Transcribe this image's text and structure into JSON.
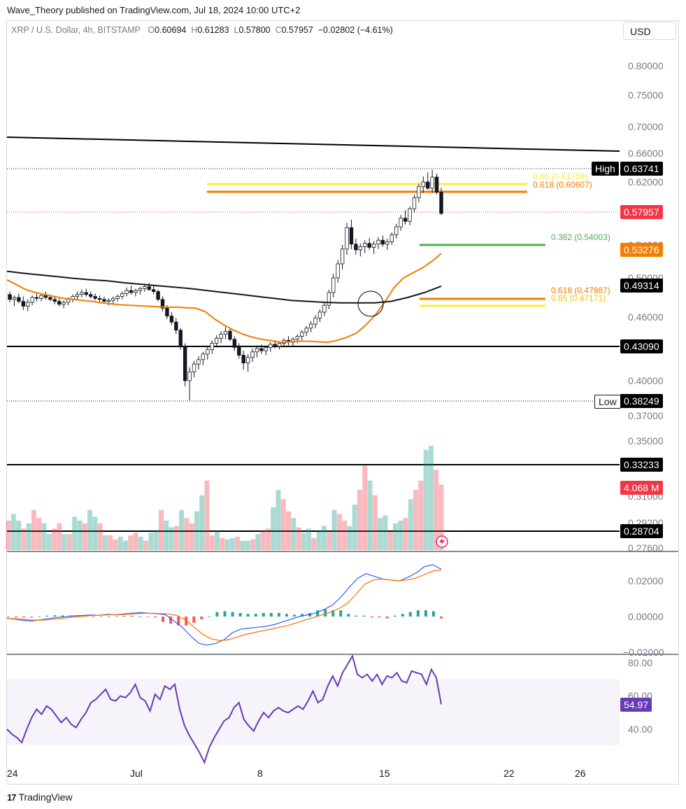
{
  "header": {
    "published_by": "Wave_Theory published on TradingView.com, Jul 18, 2024 10:00 UTC+2"
  },
  "legend": {
    "symbol": "XRP / U.S. Dollar, 4h, BITSTAMP",
    "open_label": "O",
    "open": "0.60694",
    "high_label": "H",
    "high": "0.61283",
    "low_label": "L",
    "low": "0.57800",
    "close_label": "C",
    "close": "0.57957",
    "change": "−0.02802 (−4.61%)"
  },
  "currency_button": "USD",
  "price_axis": [
    "0.80000",
    "0.75000",
    "0.70000",
    "0.66000",
    "0.62000",
    "0.54000",
    "0.50000",
    "0.46000",
    "0.40000",
    "0.37000",
    "0.35000",
    "0.31000",
    "0.29200",
    "0.27600"
  ],
  "price_tags": {
    "high_label": "High",
    "high": "0.63741",
    "current": "0.57957",
    "ema": "0.53276",
    "sma": "0.49314",
    "support": "0.43090",
    "low_label": "Low",
    "low": "0.38249",
    "level_a": "0.33233",
    "volume": "4.068 M",
    "level_b": "0.28704"
  },
  "fib_labels": {
    "upper_65": "0.65 (0.61769)",
    "upper_618": "0.618 (0.60607)",
    "mid_382": "0.382 (0.54003)",
    "lower_618": "0.618 (0.47987)",
    "lower_65": "0.65 (0.47171)"
  },
  "macd_axis": [
    "0.02000",
    "0.00000",
    "−0.02000"
  ],
  "rsi_axis": [
    "80.00",
    "60.00",
    "40.00"
  ],
  "rsi_value": "54.97",
  "date_axis": [
    "24",
    "Jul",
    "8",
    "15",
    "22",
    "26"
  ],
  "brand": "TradingView",
  "colors": {
    "up": "#089981",
    "down": "#f23645",
    "ema": "#f57c00",
    "sma": "#000000",
    "fib_yellow": "#ffeb3b",
    "fib_orange": "#f57c00",
    "fib_green": "#4caf50",
    "macd": "#2962ff",
    "signal": "#ff6d00",
    "rsi": "#7e57c2"
  },
  "chart_data": [
    {
      "type": "candlestick",
      "title": "XRP / U.S. Dollar, 4h, BITSTAMP",
      "x_range": [
        "2024-06-24",
        "2024-07-27"
      ],
      "ylim": [
        0.276,
        0.8
      ],
      "ohlc": [
        [
          0.483,
          0.486,
          0.475,
          0.478
        ],
        [
          0.478,
          0.482,
          0.471,
          0.48
        ],
        [
          0.48,
          0.484,
          0.474,
          0.476
        ],
        [
          0.476,
          0.481,
          0.467,
          0.471
        ],
        [
          0.471,
          0.478,
          0.466,
          0.475
        ],
        [
          0.475,
          0.482,
          0.472,
          0.48
        ],
        [
          0.48,
          0.485,
          0.476,
          0.479
        ],
        [
          0.479,
          0.484,
          0.476,
          0.482
        ],
        [
          0.482,
          0.486,
          0.478,
          0.48
        ],
        [
          0.48,
          0.483,
          0.476,
          0.478
        ],
        [
          0.478,
          0.481,
          0.473,
          0.476
        ],
        [
          0.476,
          0.479,
          0.471,
          0.473
        ],
        [
          0.473,
          0.477,
          0.469,
          0.475
        ],
        [
          0.475,
          0.48,
          0.472,
          0.478
        ],
        [
          0.478,
          0.483,
          0.475,
          0.481
        ],
        [
          0.481,
          0.486,
          0.478,
          0.483
        ],
        [
          0.483,
          0.488,
          0.48,
          0.485
        ],
        [
          0.485,
          0.489,
          0.481,
          0.483
        ],
        [
          0.483,
          0.486,
          0.479,
          0.481
        ],
        [
          0.481,
          0.484,
          0.477,
          0.479
        ],
        [
          0.479,
          0.482,
          0.475,
          0.478
        ],
        [
          0.478,
          0.481,
          0.474,
          0.476
        ],
        [
          0.476,
          0.479,
          0.472,
          0.477
        ],
        [
          0.477,
          0.481,
          0.474,
          0.479
        ],
        [
          0.479,
          0.483,
          0.476,
          0.481
        ],
        [
          0.481,
          0.486,
          0.478,
          0.484
        ],
        [
          0.484,
          0.49,
          0.481,
          0.487
        ],
        [
          0.487,
          0.492,
          0.483,
          0.485
        ],
        [
          0.485,
          0.489,
          0.481,
          0.487
        ],
        [
          0.487,
          0.491,
          0.483,
          0.489
        ],
        [
          0.489,
          0.494,
          0.486,
          0.491
        ],
        [
          0.491,
          0.495,
          0.487,
          0.488
        ],
        [
          0.488,
          0.492,
          0.483,
          0.486
        ],
        [
          0.486,
          0.488,
          0.476,
          0.478
        ],
        [
          0.478,
          0.481,
          0.466,
          0.469
        ],
        [
          0.469,
          0.472,
          0.458,
          0.461
        ],
        [
          0.461,
          0.465,
          0.452,
          0.455
        ],
        [
          0.455,
          0.459,
          0.443,
          0.447
        ],
        [
          0.447,
          0.449,
          0.428,
          0.431
        ],
        [
          0.431,
          0.434,
          0.395,
          0.4
        ],
        [
          0.4,
          0.412,
          0.383,
          0.408
        ],
        [
          0.408,
          0.418,
          0.403,
          0.415
        ],
        [
          0.415,
          0.422,
          0.41,
          0.419
        ],
        [
          0.419,
          0.426,
          0.414,
          0.424
        ],
        [
          0.424,
          0.431,
          0.419,
          0.428
        ],
        [
          0.428,
          0.437,
          0.424,
          0.434
        ],
        [
          0.434,
          0.442,
          0.43,
          0.439
        ],
        [
          0.439,
          0.446,
          0.434,
          0.443
        ],
        [
          0.443,
          0.45,
          0.438,
          0.446
        ],
        [
          0.446,
          0.449,
          0.436,
          0.438
        ],
        [
          0.438,
          0.441,
          0.427,
          0.43
        ],
        [
          0.43,
          0.434,
          0.42,
          0.423
        ],
        [
          0.423,
          0.427,
          0.41,
          0.416
        ],
        [
          0.416,
          0.424,
          0.408,
          0.421
        ],
        [
          0.421,
          0.429,
          0.417,
          0.426
        ],
        [
          0.426,
          0.432,
          0.421,
          0.429
        ],
        [
          0.429,
          0.433,
          0.424,
          0.427
        ],
        [
          0.427,
          0.432,
          0.423,
          0.43
        ],
        [
          0.43,
          0.435,
          0.426,
          0.433
        ],
        [
          0.433,
          0.437,
          0.429,
          0.431
        ],
        [
          0.431,
          0.436,
          0.428,
          0.434
        ],
        [
          0.434,
          0.439,
          0.43,
          0.437
        ],
        [
          0.437,
          0.441,
          0.432,
          0.435
        ],
        [
          0.435,
          0.44,
          0.431,
          0.438
        ],
        [
          0.438,
          0.443,
          0.434,
          0.441
        ],
        [
          0.441,
          0.447,
          0.437,
          0.445
        ],
        [
          0.445,
          0.451,
          0.441,
          0.449
        ],
        [
          0.449,
          0.456,
          0.445,
          0.453
        ],
        [
          0.453,
          0.462,
          0.449,
          0.459
        ],
        [
          0.459,
          0.468,
          0.455,
          0.465
        ],
        [
          0.465,
          0.475,
          0.461,
          0.472
        ],
        [
          0.472,
          0.488,
          0.468,
          0.485
        ],
        [
          0.485,
          0.505,
          0.48,
          0.5
        ],
        [
          0.5,
          0.522,
          0.495,
          0.517
        ],
        [
          0.517,
          0.54,
          0.51,
          0.535
        ],
        [
          0.535,
          0.568,
          0.528,
          0.562
        ],
        [
          0.562,
          0.572,
          0.535,
          0.541
        ],
        [
          0.541,
          0.548,
          0.528,
          0.534
        ],
        [
          0.534,
          0.542,
          0.526,
          0.538
        ],
        [
          0.538,
          0.546,
          0.53,
          0.542
        ],
        [
          0.542,
          0.549,
          0.534,
          0.537
        ],
        [
          0.537,
          0.545,
          0.529,
          0.541
        ],
        [
          0.541,
          0.55,
          0.535,
          0.546
        ],
        [
          0.546,
          0.552,
          0.538,
          0.541
        ],
        [
          0.541,
          0.548,
          0.534,
          0.544
        ],
        [
          0.544,
          0.556,
          0.54,
          0.553
        ],
        [
          0.553,
          0.567,
          0.548,
          0.563
        ],
        [
          0.563,
          0.578,
          0.558,
          0.574
        ],
        [
          0.574,
          0.584,
          0.566,
          0.57
        ],
        [
          0.57,
          0.589,
          0.565,
          0.586
        ],
        [
          0.586,
          0.604,
          0.581,
          0.6
        ],
        [
          0.6,
          0.618,
          0.594,
          0.614
        ],
        [
          0.614,
          0.628,
          0.606,
          0.62
        ],
        [
          0.62,
          0.634,
          0.61,
          0.612
        ],
        [
          0.612,
          0.6374,
          0.606,
          0.627
        ],
        [
          0.627,
          0.632,
          0.604,
          0.607
        ],
        [
          0.607,
          0.6128,
          0.578,
          0.58
        ]
      ]
    },
    {
      "type": "line",
      "title": "EMA",
      "ylim": [
        0.276,
        0.8
      ],
      "values": [
        0.498,
        0.493,
        0.488,
        0.485,
        0.483,
        0.481,
        0.479,
        0.478,
        0.477,
        0.476,
        0.4745,
        0.4735,
        0.4725,
        0.472,
        0.4715,
        0.471,
        0.4705,
        0.47,
        0.47,
        0.4695,
        0.469,
        0.4655,
        0.458,
        0.452,
        0.447,
        0.443,
        0.44,
        0.438,
        0.4365,
        0.435,
        0.4355,
        0.436,
        0.436,
        0.4355,
        0.435,
        0.437,
        0.44,
        0.444,
        0.452,
        0.462,
        0.475,
        0.49,
        0.5,
        0.506,
        0.512,
        0.52,
        0.5295
      ]
    },
    {
      "type": "line",
      "title": "SMA",
      "ylim": [
        0.276,
        0.8
      ],
      "values": [
        0.508,
        0.5055,
        0.5035,
        0.5015,
        0.4995,
        0.498,
        0.497,
        0.495,
        0.4935,
        0.492,
        0.4905,
        0.489,
        0.487,
        0.485,
        0.483,
        0.481,
        0.479,
        0.477,
        0.476,
        0.475,
        0.4745,
        0.4745,
        0.4745,
        0.476,
        0.48,
        0.485,
        0.4915
      ]
    },
    {
      "type": "bar",
      "title": "Volume",
      "values": [
        22,
        27,
        22,
        16,
        20,
        30,
        24,
        20,
        12,
        16,
        20,
        12,
        12,
        25,
        22,
        20,
        30,
        25,
        20,
        11,
        11,
        8,
        10,
        7,
        11,
        13,
        10,
        7,
        13,
        15,
        30,
        22,
        17,
        18,
        30,
        24,
        20,
        29,
        41,
        52,
        11,
        14,
        9,
        8,
        9,
        10,
        7,
        7,
        8,
        12,
        14,
        16,
        32,
        45,
        38,
        29,
        24,
        17,
        13,
        16,
        9,
        14,
        18,
        14,
        30,
        27,
        22,
        18,
        34,
        45,
        63,
        52,
        41,
        24,
        26,
        14,
        20,
        22,
        24,
        38,
        45,
        52,
        75,
        78,
        60,
        49
      ]
    },
    {
      "type": "line",
      "title": "MACD",
      "ylim": [
        -0.02,
        0.03
      ],
      "series": [
        {
          "values": [
            -0.001,
            -0.0015,
            -0.0022,
            -0.0025,
            -0.0018,
            -0.0012,
            -0.0005,
            -0.0001,
            0.0004,
            0.0006,
            0.0009,
            0.0007,
            0.0012,
            0.001,
            0.0015,
            0.0019,
            0.0022,
            0.0018,
            0.0016,
            0.001,
            -0.0025,
            -0.006,
            -0.011,
            -0.015,
            -0.016,
            -0.015,
            -0.013,
            -0.009,
            -0.007,
            -0.0065,
            -0.006,
            -0.0055,
            -0.0045,
            -0.003,
            -0.0015,
            0.0,
            0.001,
            0.002,
            0.004,
            0.0065,
            0.011,
            0.0165,
            0.0215,
            0.024,
            0.0225,
            0.021,
            0.0205,
            0.02,
            0.022,
            0.0245,
            0.028,
            0.029,
            0.0265
          ]
        },
        {
          "values": [
            -0.001,
            -0.0012,
            -0.0016,
            -0.002,
            -0.002,
            -0.0017,
            -0.0012,
            -0.0007,
            -0.0002,
            0.0002,
            0.0006,
            0.0008,
            0.001,
            0.001,
            0.0012,
            0.0015,
            0.0018,
            0.0018,
            0.0017,
            0.0015,
            0.0005,
            -0.002,
            -0.006,
            -0.01,
            -0.0125,
            -0.0135,
            -0.013,
            -0.0115,
            -0.01,
            -0.009,
            -0.008,
            -0.007,
            -0.006,
            -0.005,
            -0.0035,
            -0.002,
            -0.0005,
            0.001,
            0.0025,
            0.0045,
            0.0075,
            0.0125,
            0.018,
            0.0205,
            0.021,
            0.0205,
            0.02,
            0.0205,
            0.0215,
            0.0235,
            0.0255,
            0.0262
          ]
        }
      ],
      "histogram": [
        0.0,
        -0.0005,
        -0.0006,
        -0.0005,
        0.0002,
        0.0005,
        0.0007,
        0.0006,
        0.0006,
        0.0004,
        0.0003,
        -0.0001,
        0.0002,
        0.0,
        0.0003,
        0.0004,
        0.0004,
        0.0,
        -0.0001,
        -0.0005,
        -0.003,
        -0.004,
        -0.005,
        -0.005,
        -0.0035,
        -0.0015,
        0.0,
        0.0025,
        0.003,
        0.0025,
        0.002,
        0.0015,
        0.0015,
        0.002,
        0.002,
        0.002,
        0.0015,
        0.001,
        0.0015,
        0.002,
        0.0035,
        0.004,
        0.0035,
        0.0035,
        0.0015,
        0.0005,
        0.0005,
        -0.0005,
        -0.0005,
        -0.001,
        0.0005,
        0.0015,
        0.0025,
        0.0035,
        0.0035,
        0.003,
        -0.001
      ]
    },
    {
      "type": "line",
      "title": "RSI",
      "ylim": [
        20,
        85
      ],
      "bands": [
        30,
        70
      ],
      "values": [
        40,
        37,
        35,
        32,
        40,
        47,
        52,
        49,
        54,
        52,
        48,
        44,
        47,
        43,
        41,
        46,
        50,
        56,
        58,
        61,
        64,
        58,
        57,
        60,
        59,
        62,
        67,
        59,
        57,
        51,
        61,
        58,
        66,
        64,
        67,
        52,
        42,
        36,
        31,
        26,
        20,
        29,
        35,
        40,
        45,
        47,
        53,
        56,
        46,
        42,
        39,
        45,
        50,
        47,
        51,
        53,
        51,
        50,
        52,
        54,
        52,
        57,
        63,
        56,
        58,
        66,
        72,
        66,
        74,
        79,
        84,
        73,
        71,
        73,
        69,
        73,
        67,
        72,
        71,
        74,
        69,
        68,
        75,
        74,
        73,
        67,
        76,
        71,
        55
      ]
    }
  ]
}
